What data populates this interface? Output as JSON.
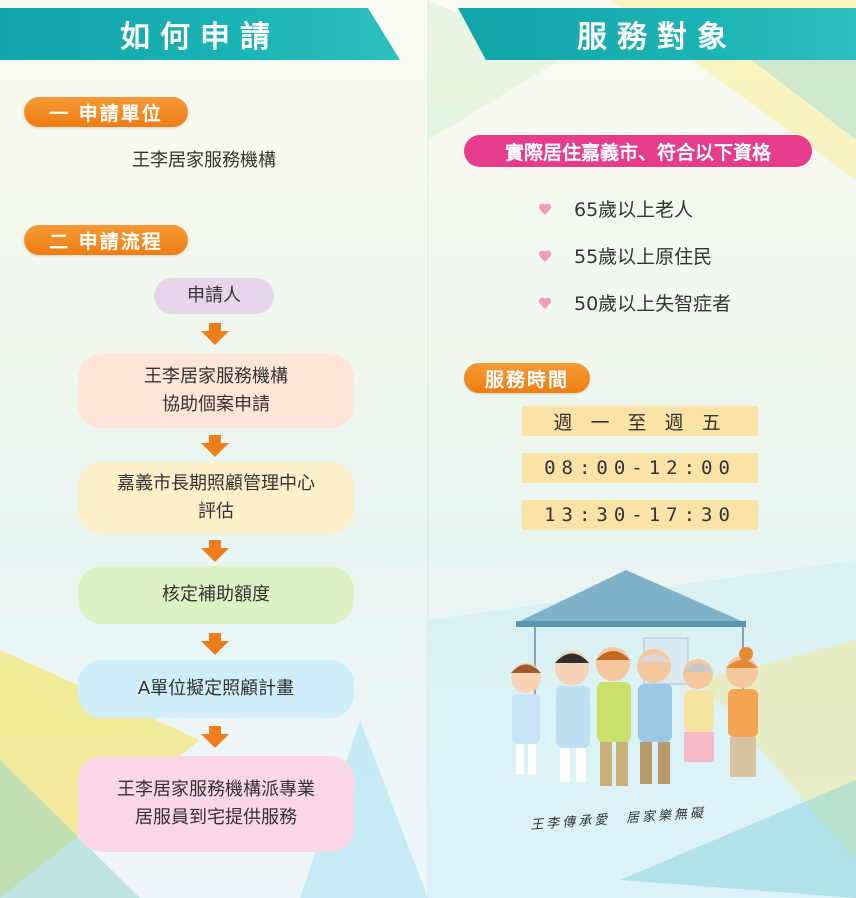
{
  "left": {
    "header": "如何申請",
    "section1": {
      "label": "一 申請單位",
      "text": "王李居家服務機構"
    },
    "section2": {
      "label": "二 申請流程"
    },
    "flow": [
      {
        "lines": [
          "申請人"
        ]
      },
      {
        "lines": [
          "王李居家服務機構",
          "協助個案申請"
        ]
      },
      {
        "lines": [
          "嘉義市長期照顧管理中心",
          "評估"
        ]
      },
      {
        "lines": [
          "核定補助額度"
        ]
      },
      {
        "lines": [
          "A單位擬定照顧計畫"
        ]
      },
      {
        "lines": [
          "王李居家服務機構派專業",
          "居服員到宅提供服務"
        ]
      }
    ]
  },
  "right": {
    "header": "服務對象",
    "eligibility_title": "實際居住嘉義市、符合以下資格",
    "qualifications": [
      "65歲以上老人",
      "55歲以上原住民",
      "50歲以上失智症者"
    ],
    "hours_title": "服務時間",
    "days": "週 一 至 週 五",
    "hours": [
      "08:00-12:00",
      "13:30-17:30"
    ],
    "slogan": "王李傳承愛　居家樂無礙"
  },
  "colors": {
    "teal": "#17aeb1",
    "orange": "#f28a1e",
    "pink": "#e73b8c",
    "peach": "#fde6d6",
    "yellow": "#fdf0c9",
    "green": "#dcf2c4",
    "blue": "#cfeefa",
    "lavender": "#e6d5ea",
    "rose": "#fbd6e6",
    "arrow": "#ee7d1a",
    "heart": "#f29bbe",
    "time_bg": "#fbe3a8"
  }
}
